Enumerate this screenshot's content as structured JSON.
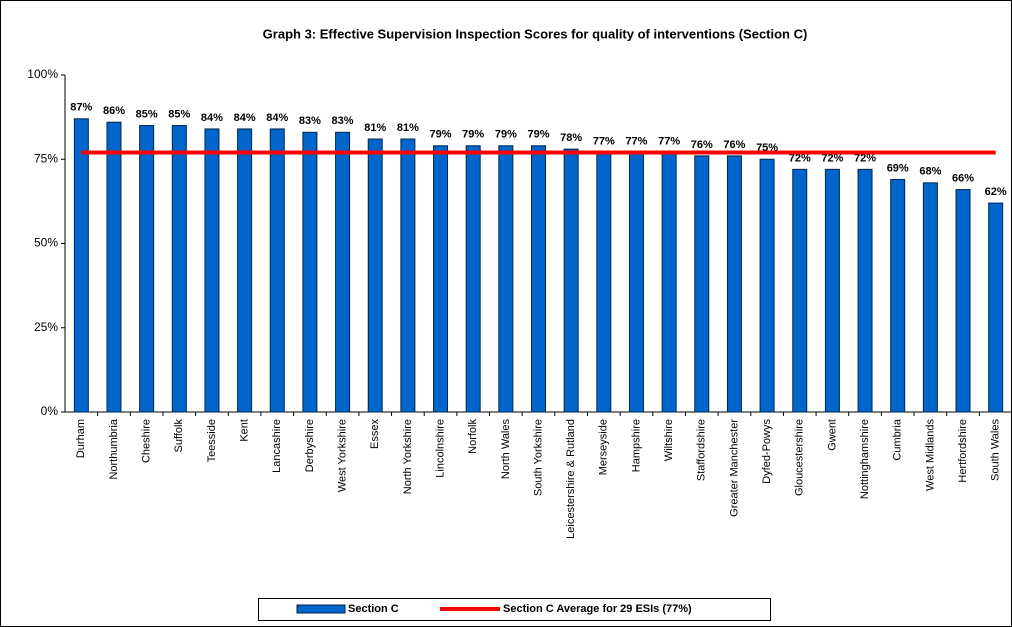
{
  "chart_data": {
    "type": "bar",
    "title": "Graph 3: Effective Supervision Inspection Scores for quality of interventions (Section C)",
    "categories": [
      "Durham",
      "Northumbria",
      "Cheshire",
      "Suffolk",
      "Teesside",
      "Kent",
      "Lancashire",
      "Derbyshire",
      "West Yorkshire",
      "Essex",
      "North Yorkshire",
      "Lincolnshire",
      "Norfolk",
      "North Wales",
      "South Yorkshire",
      "Leicestershire & Rutland",
      "Merseyside",
      "Hampshire",
      "Wiltshire",
      "Staffordshire",
      "Greater Manchester",
      "Dyfed-Powys",
      "Gloucestershire",
      "Gwent",
      "Nottinghamshire",
      "Cumbria",
      "West Midlands",
      "Hertfordshire",
      "South Wales"
    ],
    "series": [
      {
        "name": "Section C",
        "color": "#0066cc",
        "values": [
          87,
          86,
          85,
          85,
          84,
          84,
          84,
          83,
          83,
          81,
          81,
          79,
          79,
          79,
          79,
          78,
          77,
          77,
          77,
          76,
          76,
          75,
          72,
          72,
          72,
          69,
          68,
          66,
          62
        ],
        "value_labels": [
          "87%",
          "86%",
          "85%",
          "85%",
          "84%",
          "84%",
          "84%",
          "83%",
          "83%",
          "81%",
          "81%",
          "79%",
          "79%",
          "79%",
          "79%",
          "78%",
          "77%",
          "77%",
          "77%",
          "76%",
          "76%",
          "75%",
          "72%",
          "72%",
          "72%",
          "69%",
          "68%",
          "66%",
          "62%"
        ]
      },
      {
        "name": "Section C Average for 29 ESIs (77%)",
        "color": "#ff0000",
        "type": "line",
        "values": [
          77,
          77,
          77,
          77,
          77,
          77,
          77,
          77,
          77,
          77,
          77,
          77,
          77,
          77,
          77,
          77,
          77,
          77,
          77,
          77,
          77,
          77,
          77,
          77,
          77,
          77,
          77,
          77,
          77
        ]
      }
    ],
    "ylim": [
      0,
      100
    ],
    "yticks": [
      {
        "value": 0,
        "label": "0%"
      },
      {
        "value": 25,
        "label": "25%"
      },
      {
        "value": 50,
        "label": "50%"
      },
      {
        "value": 75,
        "label": "75%"
      },
      {
        "value": 100,
        "label": "100%"
      }
    ],
    "grid": false
  }
}
